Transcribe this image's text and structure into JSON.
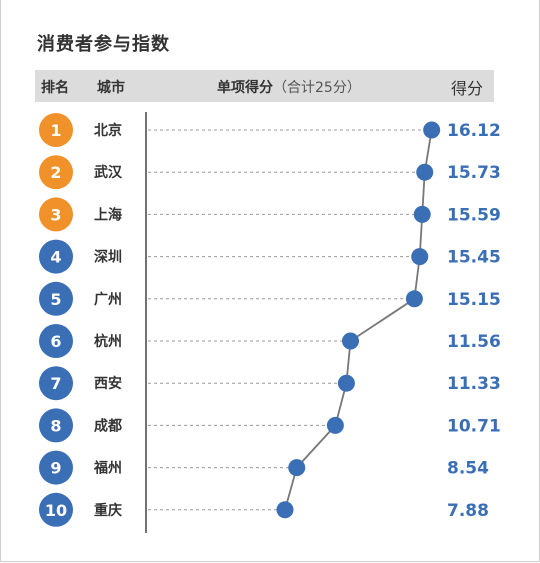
{
  "title": "消费者参与指数",
  "header": {
    "rank": "排名",
    "city": "城市",
    "item": "单项得分",
    "item_note": "（合计25分）",
    "score": "得分"
  },
  "colors": {
    "top3": "#f0912a",
    "rest": "#3a6eb5",
    "line": "#777777",
    "marker": "#3a6eb5"
  },
  "chart_data": {
    "type": "line",
    "title": "消费者参与指数",
    "ranks": [
      "1",
      "2",
      "3",
      "4",
      "5",
      "6",
      "7",
      "8",
      "9",
      "10"
    ],
    "categories": [
      "北京",
      "武汉",
      "上海",
      "深圳",
      "广州",
      "杭州",
      "西安",
      "成都",
      "福州",
      "重庆"
    ],
    "values": [
      16.12,
      15.73,
      15.59,
      15.45,
      15.15,
      11.56,
      11.33,
      10.71,
      8.54,
      7.88
    ],
    "value_labels": [
      "16.12",
      "15.73",
      "15.59",
      "15.45",
      "15.15",
      "11.56",
      "11.33",
      "10.71",
      "8.54",
      "7.88"
    ]
  }
}
